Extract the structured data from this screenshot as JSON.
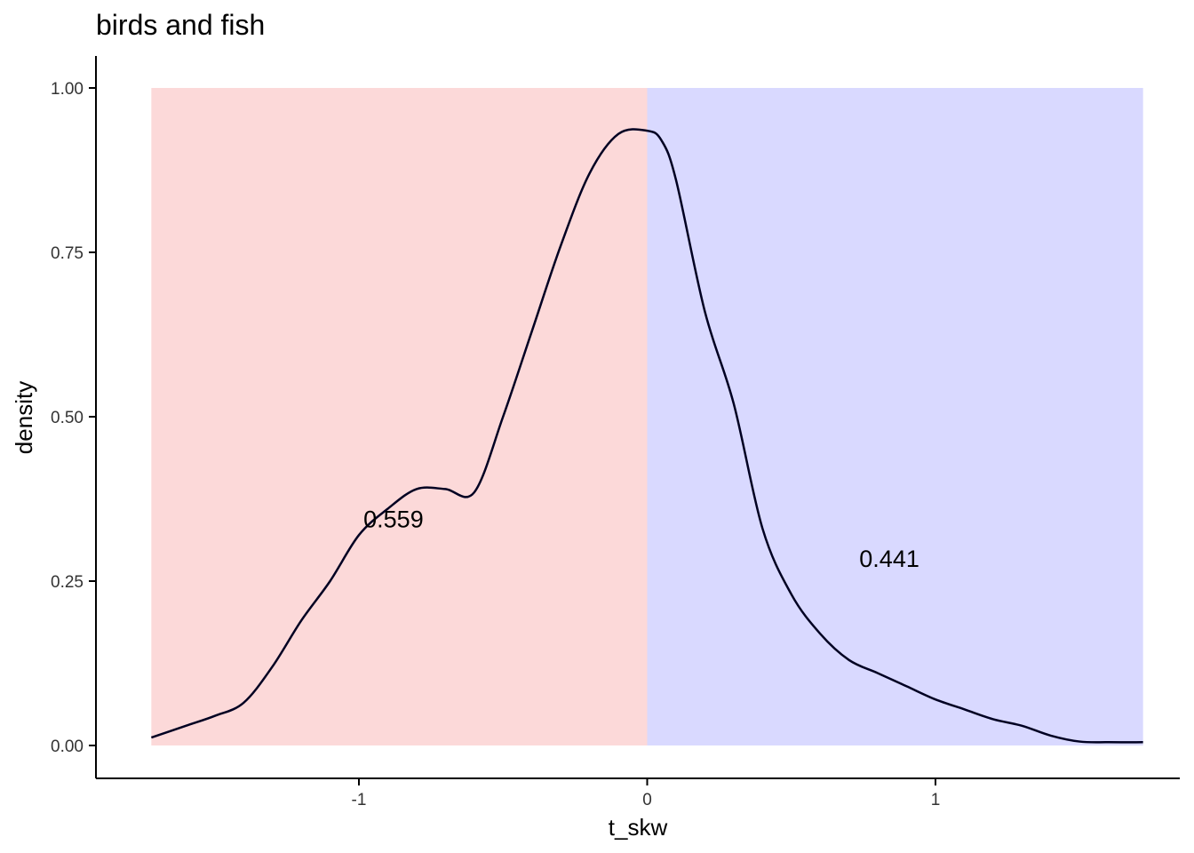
{
  "chart_data": {
    "type": "area",
    "title": "birds and fish",
    "xlabel": "t_skw",
    "ylabel": "density",
    "xlim": [
      -1.72,
      1.72
    ],
    "ylim": [
      0,
      1.0
    ],
    "x_ticks": [
      -1,
      0,
      1
    ],
    "x_tick_labels": [
      "-1",
      "0",
      "1"
    ],
    "y_ticks": [
      0,
      0.25,
      0.5,
      0.75,
      1.0
    ],
    "y_tick_labels": [
      "0.00",
      "0.25",
      "0.50",
      "0.75",
      "1.00"
    ],
    "grid": false,
    "regions": [
      {
        "from": -1.72,
        "to": 0,
        "height": 1.0,
        "color": "#fcd9d9"
      },
      {
        "from": 0,
        "to": 1.72,
        "height": 1.0,
        "color": "#d9d9ff"
      }
    ],
    "annotations": [
      {
        "text": "0.559",
        "x": -0.88,
        "y": 0.345
      },
      {
        "text": "0.441",
        "x": 0.84,
        "y": 0.285
      }
    ],
    "series": [
      {
        "line_color_left": "#2a0000",
        "line_color_right": "#000022",
        "x": [
          -1.72,
          -1.6,
          -1.5,
          -1.4,
          -1.3,
          -1.2,
          -1.1,
          -1.0,
          -0.9,
          -0.8,
          -0.7,
          -0.6,
          -0.5,
          -0.4,
          -0.3,
          -0.2,
          -0.1,
          0.0,
          0.05,
          0.1,
          0.2,
          0.3,
          0.4,
          0.5,
          0.6,
          0.7,
          0.8,
          0.9,
          1.0,
          1.1,
          1.2,
          1.3,
          1.4,
          1.5,
          1.6,
          1.72
        ],
        "y": [
          0.012,
          0.03,
          0.045,
          0.065,
          0.12,
          0.19,
          0.25,
          0.32,
          0.36,
          0.39,
          0.39,
          0.385,
          0.5,
          0.63,
          0.76,
          0.87,
          0.93,
          0.935,
          0.92,
          0.86,
          0.66,
          0.52,
          0.33,
          0.23,
          0.17,
          0.13,
          0.11,
          0.09,
          0.07,
          0.055,
          0.04,
          0.03,
          0.015,
          0.006,
          0.005,
          0.005
        ]
      }
    ]
  }
}
